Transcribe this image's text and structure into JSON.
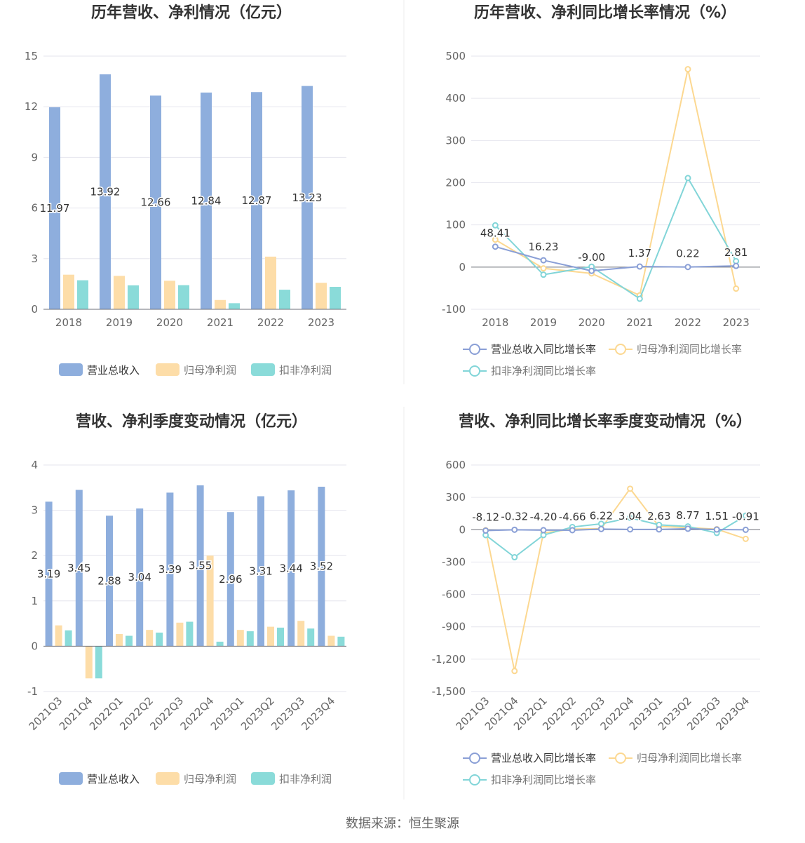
{
  "source": "数据来源：恒生聚源",
  "legend_bar": [
    "营业总收入",
    "归母净利润",
    "扣非净利润"
  ],
  "legend_line": [
    "营业总收入同比增长率",
    "归母净利润同比增长率",
    "扣非净利润同比增长率"
  ],
  "colors": {
    "revenue": "#8eaedd",
    "net_profit": "#fddda8",
    "deducted": "#8adbd9",
    "revenue_line": "#8a9fd6",
    "net_line": "#fcd891",
    "ded_line": "#82d5d8"
  },
  "chart_data": [
    {
      "id": "annual-amounts",
      "type": "bar",
      "title": "历年营收、净利情况（亿元）",
      "categories": [
        "2018",
        "2019",
        "2020",
        "2021",
        "2022",
        "2023"
      ],
      "series": [
        {
          "name": "营业总收入",
          "values": [
            11.97,
            13.92,
            12.66,
            12.84,
            12.87,
            13.23
          ],
          "labels": true
        },
        {
          "name": "归母净利润",
          "values": [
            2.05,
            1.98,
            1.69,
            0.55,
            3.12,
            1.57
          ]
        },
        {
          "name": "扣非净利润",
          "values": [
            1.72,
            1.42,
            1.43,
            0.36,
            1.16,
            1.33
          ]
        }
      ],
      "ylim": [
        0,
        15
      ],
      "yticks": [
        0,
        3,
        6,
        9,
        12,
        15
      ],
      "ytick_labels": [
        "0",
        "3",
        "6",
        "9",
        "12",
        "15"
      ],
      "legend": "bottom",
      "grid": true
    },
    {
      "id": "annual-growth",
      "type": "line",
      "title": "历年营收、净利同比增长率情况（%）",
      "categories": [
        "2018",
        "2019",
        "2020",
        "2021",
        "2022",
        "2023"
      ],
      "series": [
        {
          "name": "营业总收入同比增长率",
          "values": [
            48.41,
            16.23,
            -9.0,
            1.37,
            0.22,
            2.81
          ],
          "labels": [
            "48.41",
            "16.23",
            "-9.00",
            "1.37",
            "0.22",
            "2.81"
          ]
        },
        {
          "name": "归母净利润同比增长率",
          "values": [
            65,
            -3,
            -15,
            -67,
            469,
            -51
          ]
        },
        {
          "name": "扣非净利润同比增长率",
          "values": [
            99,
            -18,
            1,
            -75,
            211,
            14
          ]
        }
      ],
      "ylim": [
        -100,
        500
      ],
      "yticks": [
        -100,
        0,
        100,
        200,
        300,
        400,
        500
      ],
      "ytick_labels": [
        "-100",
        "0",
        "100",
        "200",
        "300",
        "400",
        "500"
      ],
      "legend": "bottom",
      "grid": true
    },
    {
      "id": "quarterly-amounts",
      "type": "bar",
      "title": "营收、净利季度变动情况（亿元）",
      "categories": [
        "2021Q3",
        "2021Q4",
        "2022Q1",
        "2022Q2",
        "2022Q3",
        "2022Q4",
        "2023Q1",
        "2023Q2",
        "2023Q3",
        "2023Q4"
      ],
      "series": [
        {
          "name": "营业总收入",
          "values": [
            3.19,
            3.45,
            2.88,
            3.04,
            3.39,
            3.55,
            2.96,
            3.31,
            3.44,
            3.52
          ],
          "labels": true
        },
        {
          "name": "归母净利润",
          "values": [
            0.46,
            -0.71,
            0.27,
            0.36,
            0.52,
            2.0,
            0.36,
            0.43,
            0.56,
            0.23
          ]
        },
        {
          "name": "扣非净利润",
          "values": [
            0.35,
            -0.71,
            0.23,
            0.3,
            0.54,
            0.1,
            0.33,
            0.41,
            0.39,
            0.21
          ]
        }
      ],
      "ylim": [
        -1,
        4
      ],
      "yticks": [
        -1,
        0,
        1,
        2,
        3,
        4
      ],
      "ytick_labels": [
        "-1",
        "0",
        "1",
        "2",
        "3",
        "4"
      ],
      "legend": "bottom",
      "grid": true
    },
    {
      "id": "quarterly-growth",
      "type": "line",
      "title": "营收、净利同比增长率季度变动情况（%）",
      "categories": [
        "2021Q3",
        "2021Q4",
        "2022Q1",
        "2022Q2",
        "2022Q3",
        "2022Q4",
        "2023Q1",
        "2023Q2",
        "2023Q3",
        "2023Q4"
      ],
      "series": [
        {
          "name": "营业总收入同比增长率",
          "values": [
            -8.12,
            -0.32,
            -4.2,
            -4.66,
            6.22,
            3.04,
            2.63,
            8.77,
            1.51,
            -0.91
          ],
          "labels": [
            "-8.12",
            "-0.32",
            "-4.20",
            "-4.66",
            "6.22",
            "3.04",
            "2.63",
            "8.77",
            "1.51",
            "-0.91"
          ]
        },
        {
          "name": "归母净利润同比增长率",
          "values": [
            -5,
            -1310,
            -30,
            5,
            10,
            380,
            30,
            20,
            5,
            -85
          ]
        },
        {
          "name": "扣非净利润同比增长率",
          "values": [
            -50,
            -255,
            -50,
            25,
            55,
            110,
            45,
            30,
            -30,
            130
          ]
        }
      ],
      "ylim": [
        -1500,
        600
      ],
      "yticks": [
        -1500,
        -1200,
        -900,
        -600,
        -300,
        0,
        300,
        600
      ],
      "ytick_labels": [
        "-1,500",
        "-1,200",
        "-900",
        "-600",
        "-300",
        "0",
        "300",
        "600"
      ],
      "legend": "bottom",
      "grid": true
    }
  ]
}
